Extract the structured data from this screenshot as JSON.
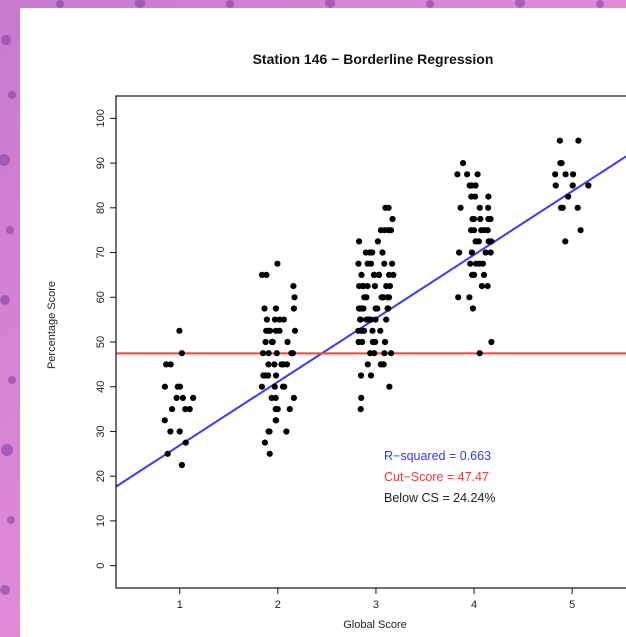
{
  "chart_data": {
    "type": "scatter",
    "title": "Station 146 − Borderline Regression",
    "xlabel": "Global Score",
    "ylabel": "Percentage Score",
    "xlim": [
      0.35,
      5.6
    ],
    "ylim": [
      -5,
      105
    ],
    "x_ticks": [
      1,
      2,
      3,
      4,
      5
    ],
    "y_ticks": [
      0,
      10,
      20,
      30,
      40,
      50,
      60,
      70,
      80,
      90,
      100
    ],
    "regression": {
      "intercept": 12.7,
      "slope": 14.2,
      "color": "#3b3bf0"
    },
    "cut_line": {
      "y": 47.47,
      "color": "#f04545"
    },
    "annotations": [
      {
        "text": "R−squared = 0.663",
        "color": "#3a3af0"
      },
      {
        "text": "Cut−Score = 47.47",
        "color": "#f03a3a"
      },
      {
        "text": "Below CS = 24.24%",
        "color": "#222222"
      }
    ],
    "groups": [
      {
        "x": 1,
        "values": [
          52.5,
          47.5,
          45,
          45,
          40,
          40,
          40,
          37.5,
          37.5,
          37.5,
          35,
          35,
          35,
          32.5,
          30,
          30,
          27.5,
          25,
          22.5
        ]
      },
      {
        "x": 2,
        "values": [
          67.5,
          65,
          65,
          62.5,
          60,
          57.5,
          57.5,
          57.5,
          55,
          55,
          55,
          55,
          52.5,
          52.5,
          52.5,
          52.5,
          52.5,
          52.5,
          50,
          50,
          50,
          50,
          50,
          47.5,
          47.5,
          47.5,
          47.5,
          47.5,
          45,
          45,
          45,
          45,
          45,
          42.5,
          42.5,
          42.5,
          42.5,
          40,
          40,
          40,
          40,
          37.5,
          37.5,
          37.5,
          35,
          35,
          35,
          32.5,
          32.5,
          30,
          30,
          30,
          27.5,
          25
        ]
      },
      {
        "x": 3,
        "values": [
          80,
          80,
          77.5,
          75,
          75,
          75,
          75,
          72.5,
          72.5,
          70,
          70,
          70,
          70,
          70,
          67.5,
          67.5,
          67.5,
          67.5,
          67.5,
          65,
          65,
          65,
          65,
          65,
          65,
          65,
          62.5,
          62.5,
          62.5,
          62.5,
          62.5,
          62.5,
          62.5,
          60,
          60,
          60,
          60,
          60,
          60,
          60,
          57.5,
          57.5,
          57.5,
          57.5,
          57.5,
          57.5,
          57.5,
          57.5,
          55,
          55,
          55,
          55,
          55,
          55,
          55,
          55,
          52.5,
          52.5,
          52.5,
          52.5,
          52.5,
          52.5,
          50,
          50,
          50,
          50,
          50,
          47.5,
          47.5,
          47.5,
          47.5,
          45,
          45,
          45,
          42.5,
          42.5,
          40,
          37.5,
          35
        ]
      },
      {
        "x": 4,
        "values": [
          90,
          87.5,
          87.5,
          87.5,
          85,
          85,
          85,
          82.5,
          82.5,
          82.5,
          80,
          80,
          80,
          77.5,
          77.5,
          77.5,
          77.5,
          77.5,
          75,
          75,
          75,
          75,
          75,
          72.5,
          72.5,
          72.5,
          72.5,
          70,
          70,
          70,
          70,
          67.5,
          67.5,
          67.5,
          67.5,
          65,
          65,
          65,
          62.5,
          62.5,
          60,
          60,
          57.5,
          50,
          47.5
        ]
      },
      {
        "x": 5,
        "values": [
          95,
          95,
          90,
          90,
          87.5,
          87.5,
          87.5,
          85,
          85,
          85,
          82.5,
          80,
          80,
          80,
          75,
          72.5
        ]
      }
    ]
  }
}
